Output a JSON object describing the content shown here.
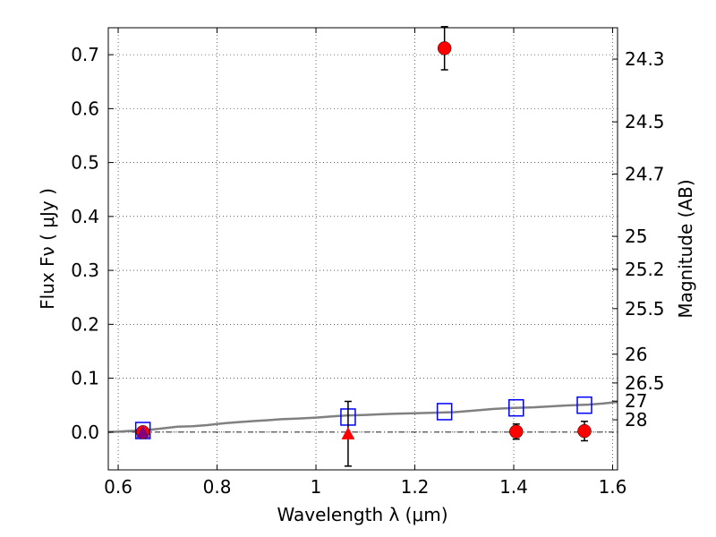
{
  "chart_data": {
    "type": "scatter",
    "xlabel": "Wavelength  λ (μm)",
    "ylabel": "Flux  Fν  ( μJy )",
    "ylabel_right": "Magnitude (AB)",
    "xlim": [
      0.58,
      1.61
    ],
    "ylim": [
      -0.07,
      0.75
    ],
    "grid": true,
    "x_ticks": [
      {
        "value": 0.6,
        "label": "0.6"
      },
      {
        "value": 0.8,
        "label": "0.8"
      },
      {
        "value": 1.0,
        "label": "1"
      },
      {
        "value": 1.2,
        "label": "1.2"
      },
      {
        "value": 1.4,
        "label": "1.4"
      },
      {
        "value": 1.6,
        "label": "1.6"
      }
    ],
    "y_ticks": [
      {
        "value": 0.0,
        "label": "0.0"
      },
      {
        "value": 0.1,
        "label": "0.1"
      },
      {
        "value": 0.2,
        "label": "0.2"
      },
      {
        "value": 0.3,
        "label": "0.3"
      },
      {
        "value": 0.4,
        "label": "0.4"
      },
      {
        "value": 0.5,
        "label": "0.5"
      },
      {
        "value": 0.6,
        "label": "0.6"
      },
      {
        "value": 0.7,
        "label": "0.7"
      }
    ],
    "right_ticks": [
      {
        "value": 24.3,
        "label": "24.3"
      },
      {
        "value": 24.5,
        "label": "24.5"
      },
      {
        "value": 24.7,
        "label": "24.7"
      },
      {
        "value": 25.0,
        "label": "25"
      },
      {
        "value": 25.2,
        "label": "25.2"
      },
      {
        "value": 25.5,
        "label": "25.5"
      },
      {
        "value": 26.0,
        "label": "26"
      },
      {
        "value": 26.5,
        "label": "26.5"
      },
      {
        "value": 27.0,
        "label": "27"
      },
      {
        "value": 28.0,
        "label": "28"
      }
    ],
    "series": [
      {
        "kind": "line",
        "color": "#808080",
        "points": [
          [
            0.58,
            0.0
          ],
          [
            0.6,
            0.001
          ],
          [
            0.62,
            0.002
          ],
          [
            0.65,
            0.003
          ],
          [
            0.68,
            0.006
          ],
          [
            0.7,
            0.008
          ],
          [
            0.72,
            0.01
          ],
          [
            0.75,
            0.011
          ],
          [
            0.78,
            0.013
          ],
          [
            0.8,
            0.015
          ],
          [
            0.82,
            0.017
          ],
          [
            0.85,
            0.019
          ],
          [
            0.88,
            0.021
          ],
          [
            0.9,
            0.022
          ],
          [
            0.93,
            0.024
          ],
          [
            0.96,
            0.025
          ],
          [
            1.0,
            0.027
          ],
          [
            1.03,
            0.029
          ],
          [
            1.06,
            0.031
          ],
          [
            1.1,
            0.032
          ],
          [
            1.13,
            0.033
          ],
          [
            1.16,
            0.034
          ],
          [
            1.2,
            0.035
          ],
          [
            1.24,
            0.036
          ],
          [
            1.28,
            0.037
          ],
          [
            1.32,
            0.04
          ],
          [
            1.36,
            0.043
          ],
          [
            1.4,
            0.045
          ],
          [
            1.44,
            0.046
          ],
          [
            1.48,
            0.048
          ],
          [
            1.52,
            0.05
          ],
          [
            1.55,
            0.051
          ],
          [
            1.58,
            0.053
          ],
          [
            1.61,
            0.056
          ]
        ]
      },
      {
        "kind": "open-square",
        "color": "#0000ff",
        "points": [
          [
            0.65,
            0.003
          ],
          [
            1.065,
            0.028
          ],
          [
            1.26,
            0.038
          ],
          [
            1.405,
            0.045
          ],
          [
            1.543,
            0.05
          ]
        ]
      },
      {
        "kind": "circle",
        "color": "#ff0000",
        "points": [
          [
            0.65,
            0.0
          ],
          [
            1.26,
            0.712
          ],
          [
            1.405,
            0.001
          ],
          [
            1.543,
            0.002
          ]
        ],
        "errors": [
          null,
          0.04,
          0.014,
          0.018
        ]
      },
      {
        "kind": "triangle",
        "color": "#ff0000",
        "points": [
          [
            1.065,
            -0.003
          ]
        ],
        "errors": [
          0.06
        ]
      },
      {
        "kind": "triangle",
        "color": "#800080",
        "points": [
          [
            0.65,
            0.0
          ]
        ]
      }
    ]
  }
}
